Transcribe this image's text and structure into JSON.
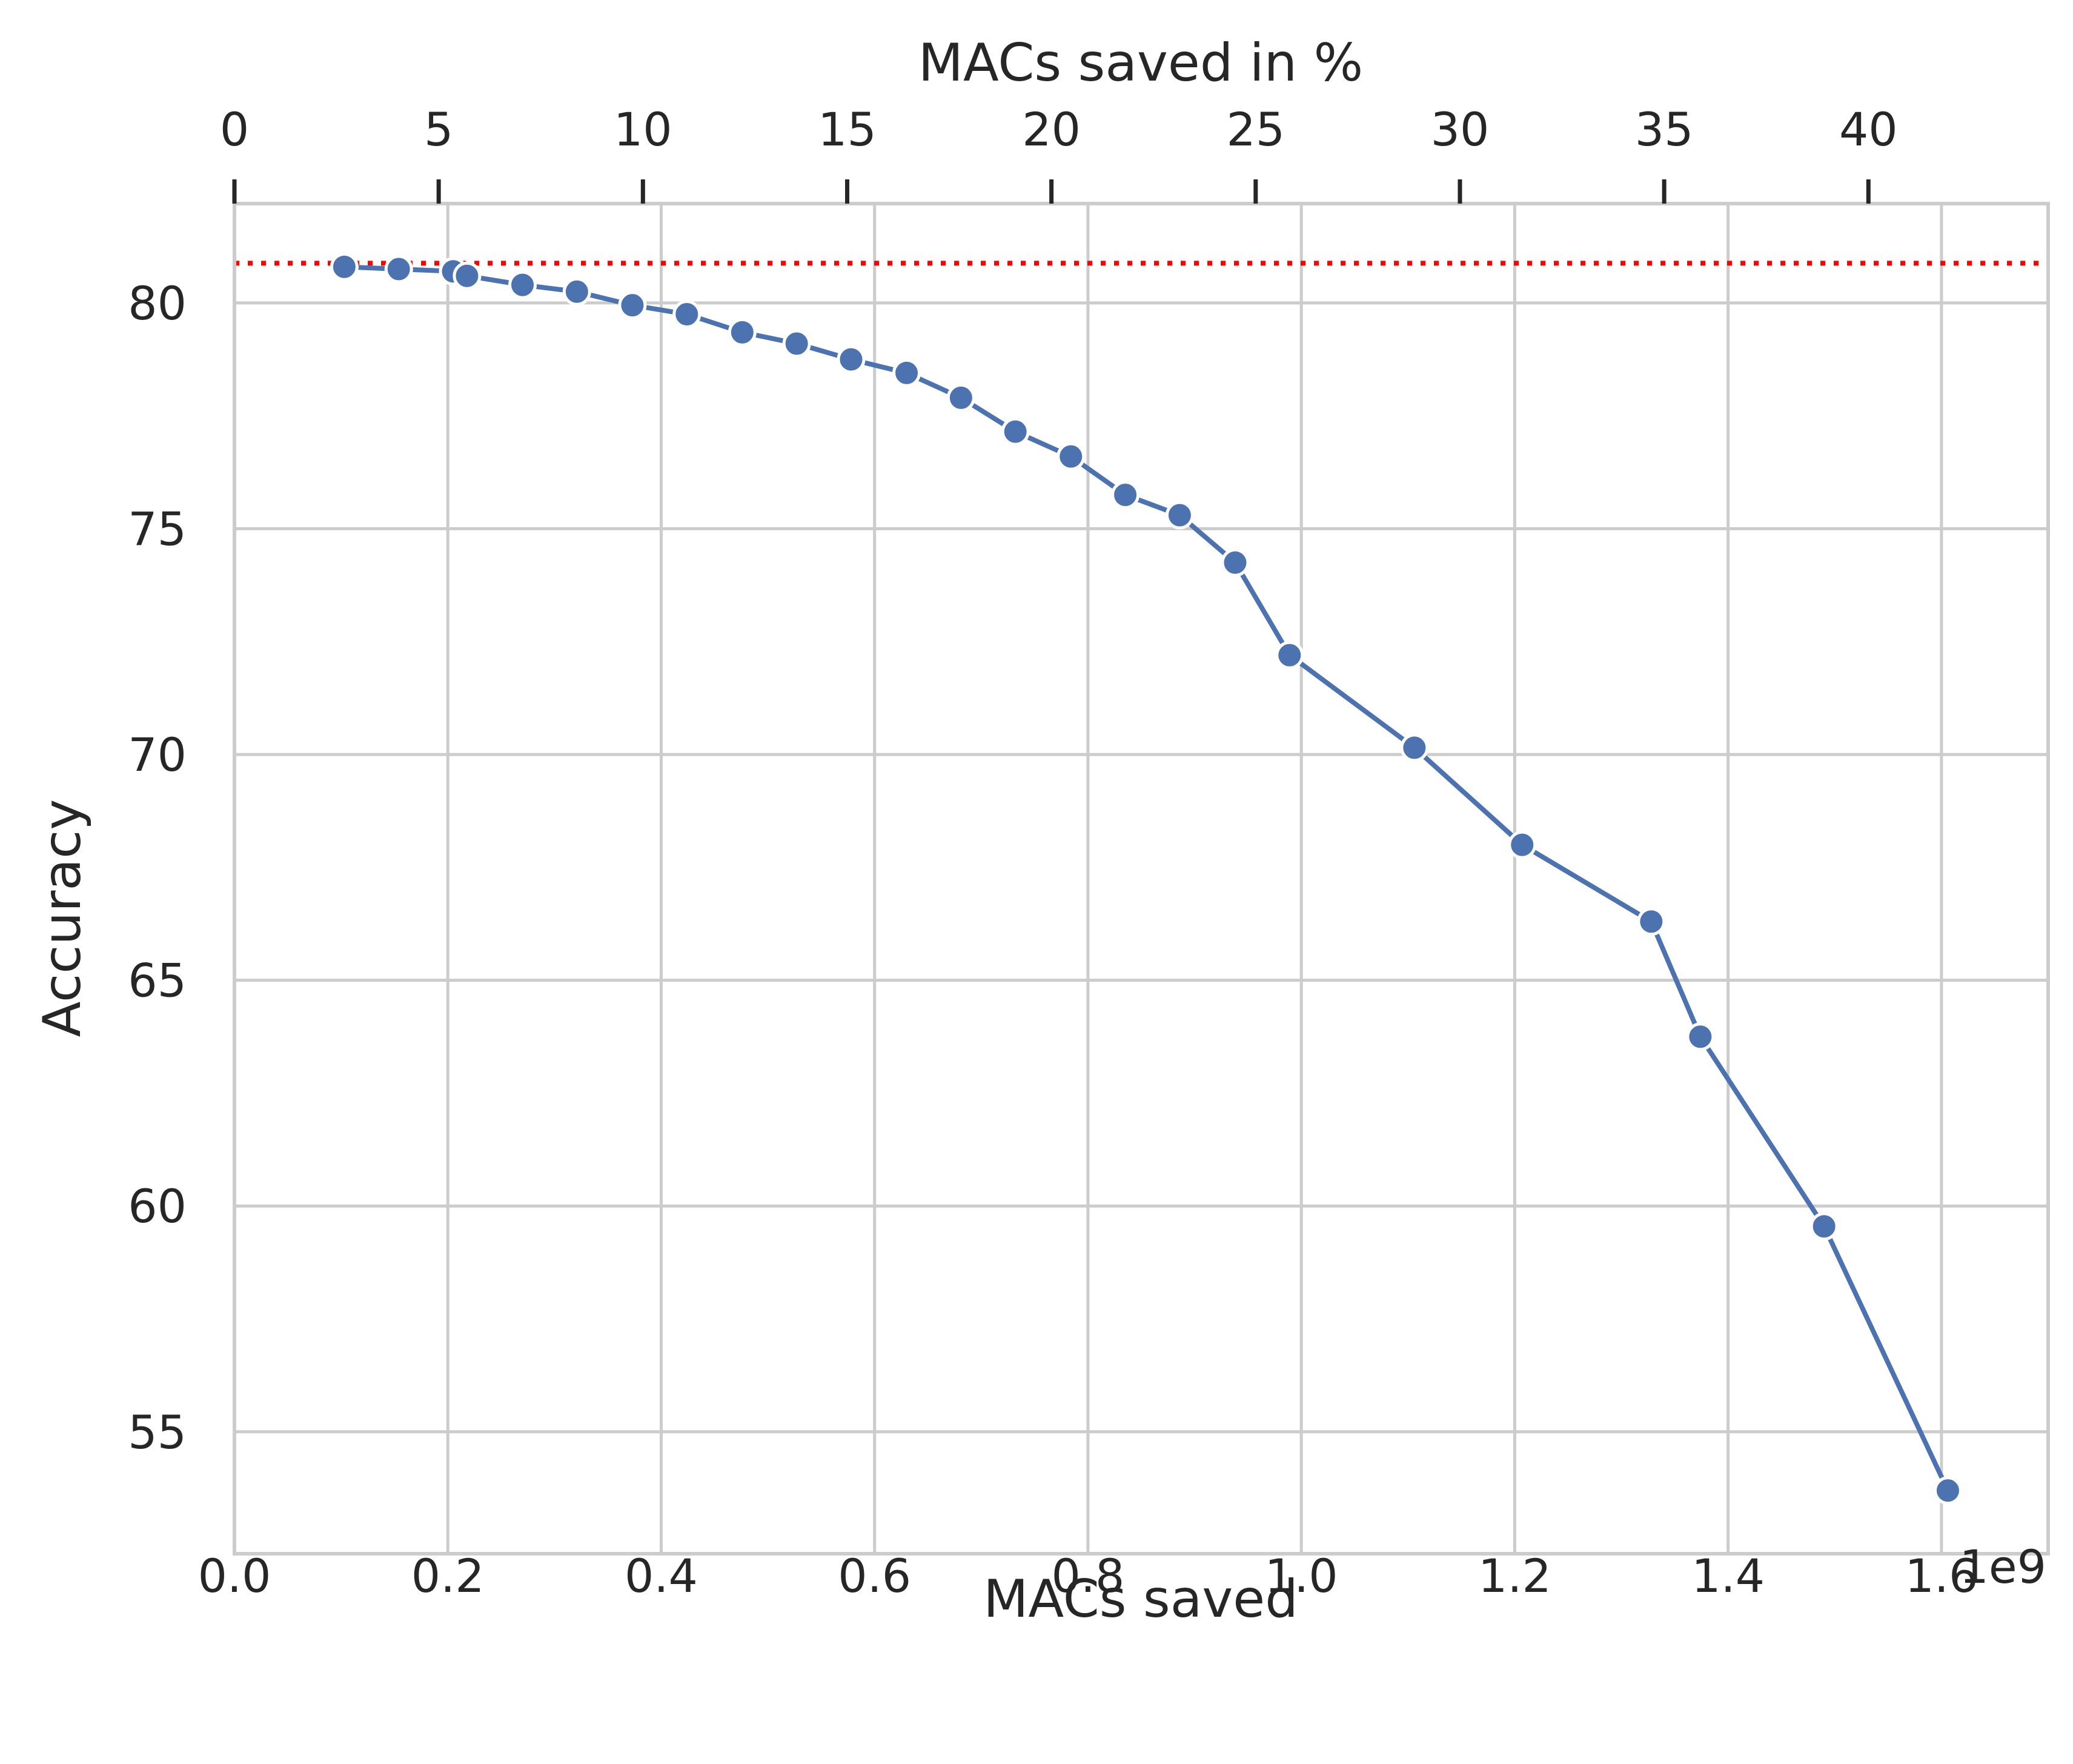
{
  "chart_data": {
    "type": "line",
    "xlabel": "MACs saved",
    "ylabel": "Accuracy",
    "top_xlabel": "MACs saved in %",
    "x_offset_label": "1e9",
    "xlim": [
      0.0,
      1.7
    ],
    "ylim": [
      52.3,
      82.2
    ],
    "top_xlim": [
      0,
      44.4
    ],
    "x_ticks": [
      0.0,
      0.2,
      0.4,
      0.6,
      0.8,
      1.0,
      1.2,
      1.4,
      1.6
    ],
    "x_tick_labels": [
      "0.0",
      "0.2",
      "0.4",
      "0.6",
      "0.8",
      "1.0",
      "1.2",
      "1.4",
      "1.6"
    ],
    "y_ticks": [
      55,
      60,
      65,
      70,
      75,
      80
    ],
    "y_tick_labels": [
      "55",
      "60",
      "65",
      "70",
      "75",
      "80"
    ],
    "top_x_ticks": [
      0,
      5,
      10,
      15,
      20,
      25,
      30,
      35,
      40
    ],
    "top_x_tick_labels": [
      "0",
      "5",
      "10",
      "15",
      "20",
      "25",
      "30",
      "35",
      "40"
    ],
    "grid": true,
    "colors": {
      "line": "#4c72b0",
      "baseline": "#ff0000",
      "grid": "#cccccc",
      "axes": "#cccccc",
      "text": "#262626"
    },
    "baseline": {
      "y": 80.88,
      "style": "dotted"
    },
    "series": [
      {
        "x": [
          0.103,
          0.154,
          0.205,
          0.218,
          0.27,
          0.321,
          0.373,
          0.424,
          0.476,
          0.527,
          0.578,
          0.63,
          0.681,
          0.732,
          0.784,
          0.835,
          0.886,
          0.938,
          0.989,
          1.106,
          1.207,
          1.328,
          1.374,
          1.49,
          1.606
        ],
        "y": [
          80.8,
          80.75,
          80.7,
          80.6,
          80.4,
          80.25,
          79.95,
          79.75,
          79.35,
          79.1,
          78.75,
          78.45,
          77.9,
          77.15,
          76.6,
          75.75,
          75.3,
          74.25,
          72.2,
          70.15,
          68.0,
          66.3,
          63.75,
          59.55,
          53.7
        ]
      }
    ]
  }
}
